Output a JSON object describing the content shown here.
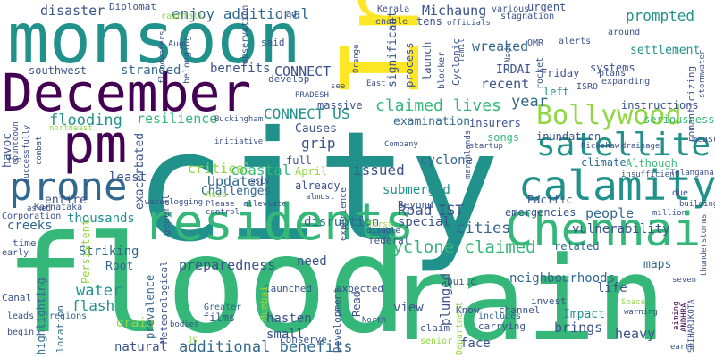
{
  "palette": {
    "dark_purple": "#440154",
    "indigo": "#3b528b",
    "blue": "#31688e",
    "teal": "#21918c",
    "green": "#35b779",
    "light_green": "#90d743",
    "yellow": "#fde725"
  },
  "words": {
    "flood": "flood",
    "city": "city",
    "india": "India",
    "rain": "rain",
    "monsoon": "monsoon",
    "december": "December",
    "residents": "residents",
    "chennai": "Chennai",
    "pm": "pm",
    "calamity": "calamity",
    "prone": "prone",
    "satellite": "satellite",
    "bollywood": "Bollywood",
    "flooding": "flooding",
    "disaster": "disaster",
    "enjoy_additional": "enjoy additional",
    "additional_benefits": "additional benefits",
    "cyclone_claimed": "cyclone claimed",
    "claimed_lives": "claimed lives",
    "connect_us": "CONNECT US",
    "connect": "CONNECT",
    "benefits": "benefits",
    "stranded": "stranded",
    "michaung": "Michaung",
    "year": "year",
    "prompted": "prompted",
    "settlement": "settlement",
    "wreaked": "wreaked",
    "recent": "recent",
    "tens": "tens",
    "coastal": "coastal",
    "updated": "Updated",
    "issued": "issued",
    "submerged": "submerged",
    "road": "Road",
    "ist": "IST",
    "cyclone": "cyclone",
    "cities": "cities",
    "neighbourhoods": "neighbourhoods",
    "people": "people",
    "water": "water",
    "flash": "flash",
    "drain": "drain",
    "striking": "Striking",
    "root": "Root",
    "preparedness": "preparedness",
    "natural": "natural",
    "thousands": "thousands",
    "resilience": "resilience",
    "grip": "grip",
    "causes": "Causes",
    "critical": "critical",
    "challenges": "Challenges",
    "least": "least",
    "entire": "entire",
    "exacerbated": "exacerbated",
    "face": "face",
    "plunged": "plunged",
    "brings": "brings",
    "heavy": "heavy",
    "impact": "Impact",
    "life": "life",
    "maps": "maps",
    "hasten": "hasten",
    "small": "small",
    "view": "view",
    "need": "need",
    "disruption": "disruption",
    "special": "special",
    "emergencies": "emergencies",
    "vulnerability": "vulnerability",
    "related": "related",
    "inundation": "inundation",
    "climate": "climate",
    "although": "Although",
    "examination": "examination",
    "songs": "songs",
    "significant": "significant",
    "process": "process",
    "launch": "launch",
    "irdai": "IRDAI",
    "friday": "Friday",
    "left": "left",
    "insurers": "insurers",
    "instructions": "instructions",
    "seriousness": "seriousness",
    "systems": "systems",
    "april": "April",
    "pacific": "Pacific",
    "beyond": "Beyond",
    "already": "already",
    "full": "full",
    "massive": "massive",
    "havoc": "havoc",
    "persistent": "Persistent",
    "highlighting": "highlighting",
    "location": "location",
    "prevalence": "prevalence",
    "films": "films",
    "greater": "Greater",
    "conserve": "conserve",
    "launched": "launched",
    "expected": "expected",
    "read": "Read",
    "build": "build",
    "channel": "channel",
    "invest": "invest",
    "know": "Know",
    "includes": "includes",
    "carrying": "carrying",
    "claim": "claim",
    "senior": "senior",
    "federal": "federal",
    "creeks": "creeks",
    "time": "time",
    "early": "early",
    "canal": "Canal",
    "leads": "leads",
    "regions": "regions",
    "begin": "begin",
    "karnataka": "Karnataka",
    "corporation": "Corporation",
    "asked": "asked",
    "diplomat": "Diplomat",
    "rainfall": "rainfall",
    "kerala": "Kerala",
    "urgent": "urgent",
    "enable": "enable",
    "various": "various",
    "southwest": "southwest",
    "belonging": "belonging",
    "aug": "Aug",
    "said": "said",
    "orange": "Orange",
    "develop": "develop",
    "pradesh": "PRADESH",
    "see": "see",
    "officials": "officials",
    "cyclonic": "Cyclonic",
    "tamil": "Tamil",
    "nadu": "Nadu",
    "omr": "OMR",
    "blocker": "blocker",
    "rocket": "rocket",
    "isro": "ISRO",
    "plans": "plans",
    "alerts": "alerts",
    "expanding": "expanding",
    "around": "around",
    "stagnation": "stagnation",
    "romanticizing": "romanticizing",
    "stormwater": "stormwater",
    "east": "East",
    "ad": "ad",
    "observation": "observation",
    "floodwaters": "floodwaters",
    "countdown": "countdown",
    "successfully": "successfully",
    "combat": "combat",
    "two": "two",
    "northeast": "northeast",
    "buckingham": "Buckingham",
    "initiative": "initiative",
    "please": "Please",
    "control": "control",
    "sslv": "SSLV",
    "asia": "Asia",
    "almost": "almost",
    "experience": "experience",
    "rickshaw": "Rickshaw",
    "drainage": "drainage",
    "insufficient": "insufficient",
    "telangana": "Telangana",
    "company": "Company",
    "marshlands": "marshlands",
    "startup": "startup",
    "general": "general",
    "waterlogging": "waterlogging",
    "alleviate": "alleviate",
    "meteorological": "Meteorological",
    "mumbai": "Mumbai",
    "development": "Development",
    "first": "first",
    "disable": "disable",
    "north": "North",
    "department": "Department",
    "million": "million",
    "building": "building",
    "due": "due",
    "thunderstorms": "thunderstorms",
    "measu": "measu",
    "space": "Space",
    "warning": "warning",
    "seven": "seven",
    "andhra": "ANDHRA",
    "aiming": "aiming",
    "sriharikota": "SRIHARIKOTA",
    "earth": "earth",
    "js": "JS",
    "bodies": "bodies"
  }
}
